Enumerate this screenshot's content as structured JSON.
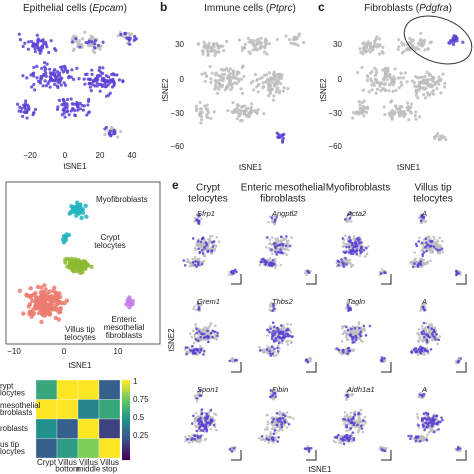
{
  "a": {
    "title": [
      "Epithelial cells (",
      "Epcam",
      ")"
    ],
    "xticks": [
      "−20",
      "0",
      "20",
      "40"
    ],
    "xlabel": "tSNE1"
  },
  "b": {
    "letter": "b",
    "title": [
      "Immune cells (",
      "Ptprc",
      ")"
    ],
    "yticks": [
      "30",
      "0",
      "−30",
      "−60"
    ],
    "ylabel": "tSNE2",
    "xlabel": "tSNE1"
  },
  "c": {
    "letter": "c",
    "title": [
      "Fibroblasts (",
      "Pdgfra",
      ")"
    ],
    "yticks": [
      "30",
      "0",
      "−30",
      "−60"
    ],
    "ylabel": "tSNE2",
    "xlabel": "tSNE1"
  },
  "d": {
    "clusters": [
      [
        "Myofibroblasts"
      ],
      [
        "Crypt",
        "telocytes"
      ],
      [
        "Enteric",
        "mesothelial",
        "fibroblasts"
      ],
      [
        "Villus tip",
        "telocytes"
      ]
    ],
    "xticks": [
      "−10",
      "0",
      "10"
    ],
    "xlabel": "tSNE1"
  },
  "heatmap": {
    "rows": [
      [
        "rypt",
        "locytes"
      ],
      [
        "mesothelial",
        "broblasts"
      ],
      [
        "roblasts"
      ],
      [
        "us tip",
        "locytes"
      ]
    ],
    "columns": [
      [
        "Crypt"
      ],
      [
        "Villus",
        "bottom"
      ],
      [
        "Villus",
        "middle"
      ],
      [
        "Villus",
        "stop"
      ]
    ],
    "values": [
      [
        0.6,
        1,
        1,
        0.3
      ],
      [
        1,
        1,
        0.45,
        0.6
      ],
      [
        0.5,
        0.3,
        1,
        0.2
      ],
      [
        0.3,
        0.55,
        0.8,
        1
      ]
    ],
    "colorbar": [
      "1",
      "0.75",
      "0.5",
      "0.25"
    ]
  },
  "e": {
    "letter": "e",
    "groups": [
      [
        "Crypt",
        "telocytes"
      ],
      [
        "Enteric mesothelial",
        "fibroblasts"
      ],
      [
        "Myofibroblasts"
      ],
      [
        "Villus tip",
        "telocytes"
      ]
    ],
    "genes": [
      [
        "Sfrp1",
        "Angptl2",
        "Acta2",
        "A"
      ],
      [
        "Grem1",
        "Thbs2",
        "Tagln",
        "A"
      ],
      [
        "Spon1",
        "Fibin",
        "Aldh1a1",
        "A"
      ]
    ],
    "ylabel": "tSNE2",
    "xlabel": "tSNE1"
  }
}
